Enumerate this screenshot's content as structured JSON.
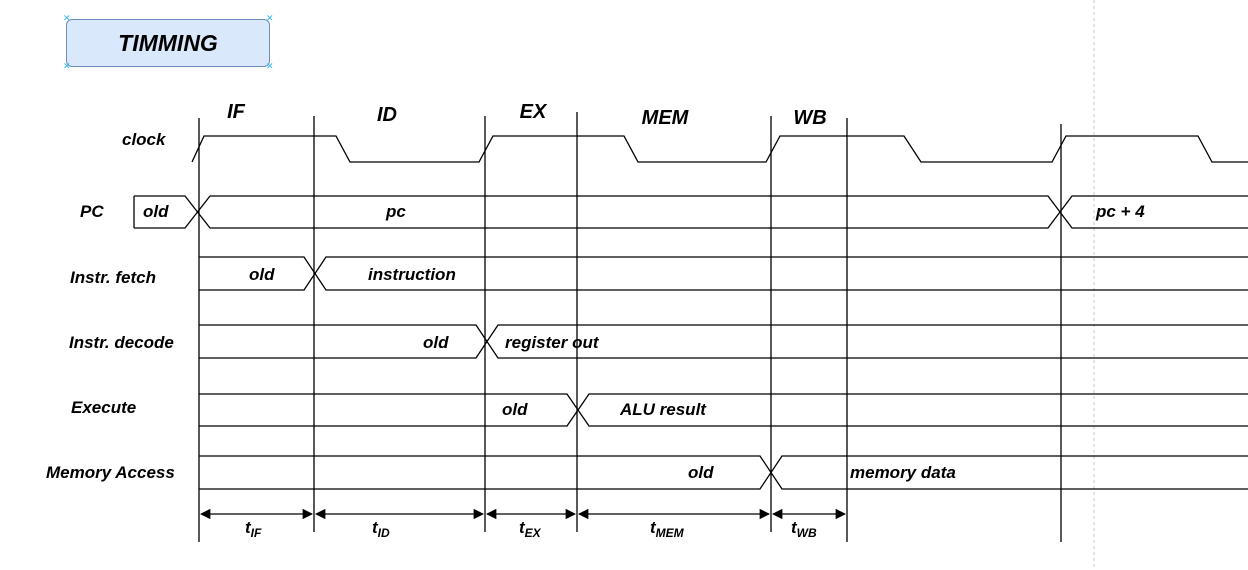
{
  "title": "TIMMING",
  "colors": {
    "title_fill": "#dae8fc",
    "title_border": "#6c8ebf",
    "line": "#000000",
    "guide": "#c8c8c8"
  },
  "stages": [
    "IF",
    "ID",
    "EX",
    "MEM",
    "WB"
  ],
  "signals": {
    "clock": "clock",
    "pc": "PC",
    "fetch": "Instr. fetch",
    "decode": "Instr. decode",
    "execute": "Execute",
    "memory": "Memory Access"
  },
  "values": {
    "pc_old": "old",
    "pc": "pc",
    "pc_next": "pc + 4",
    "fetch_old": "old",
    "fetch_new": "instruction",
    "decode_old": "old",
    "decode_new": "register out",
    "execute_old": "old",
    "execute_new": "ALU result",
    "memory_old": "old",
    "memory_new": "memory data"
  },
  "durations": [
    {
      "main": "t",
      "sub": "IF"
    },
    {
      "main": "t",
      "sub": "ID"
    },
    {
      "main": "t",
      "sub": "EX"
    },
    {
      "main": "t",
      "sub": "MEM"
    },
    {
      "main": "t",
      "sub": "WB"
    }
  ]
}
